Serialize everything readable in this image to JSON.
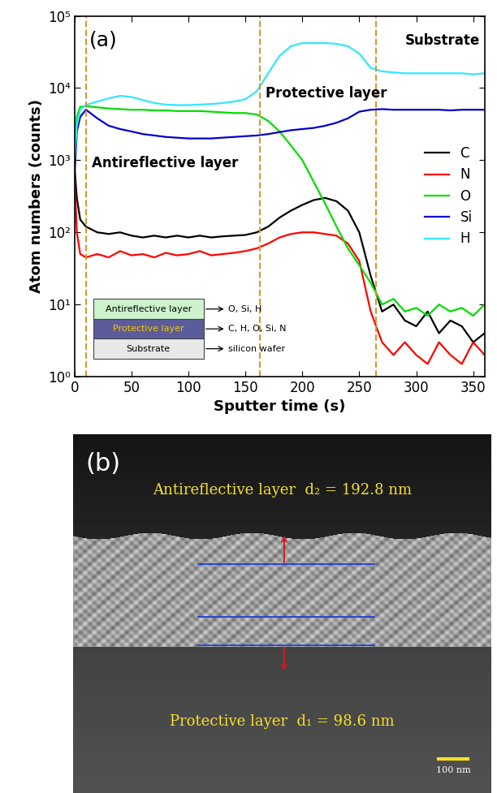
{
  "chart_data": {
    "type": "line",
    "panel_label": "(a)",
    "x_label": "Sputter time (s)",
    "y_label": "Atom numbers (counts)",
    "log": "y",
    "xlim": [
      0,
      360
    ],
    "xticks": [
      0,
      50,
      100,
      150,
      200,
      250,
      300,
      350
    ],
    "ylim": [
      1,
      100000
    ],
    "yticks": [
      {
        "value": 1,
        "label": "10⁰"
      },
      {
        "value": 10,
        "label": "10¹"
      },
      {
        "value": 100,
        "label": "10²"
      },
      {
        "value": 1000,
        "label": "10³"
      },
      {
        "value": 10000,
        "label": "10⁴"
      },
      {
        "value": 100000,
        "label": "10⁵"
      }
    ],
    "legend": "center right",
    "x": [
      0,
      2,
      5,
      10,
      20,
      30,
      40,
      50,
      60,
      70,
      80,
      90,
      100,
      110,
      120,
      130,
      140,
      150,
      160,
      170,
      180,
      190,
      200,
      210,
      220,
      230,
      240,
      250,
      260,
      270,
      280,
      290,
      300,
      310,
      320,
      330,
      340,
      350,
      360
    ],
    "series": [
      {
        "name": "C",
        "color": "#000000",
        "values": [
          800,
          300,
          150,
          120,
          100,
          95,
          100,
          90,
          85,
          90,
          85,
          90,
          85,
          90,
          85,
          88,
          90,
          92,
          100,
          120,
          160,
          200,
          240,
          280,
          300,
          270,
          200,
          100,
          25,
          8,
          10,
          6,
          5,
          8,
          4,
          6,
          5,
          3,
          4
        ]
      },
      {
        "name": "N",
        "color": "#ff0000",
        "values": [
          600,
          100,
          50,
          45,
          50,
          45,
          55,
          48,
          50,
          45,
          52,
          48,
          50,
          55,
          48,
          50,
          52,
          55,
          60,
          70,
          85,
          95,
          100,
          100,
          95,
          90,
          70,
          40,
          8,
          3,
          2,
          3,
          2,
          1.5,
          3,
          2,
          1.5,
          3,
          2
        ]
      },
      {
        "name": "O",
        "color": "#00dd00",
        "values": [
          800,
          4000,
          5500,
          5600,
          5400,
          5200,
          5100,
          5000,
          5000,
          4900,
          4900,
          4800,
          4800,
          4800,
          4700,
          4600,
          4500,
          4500,
          4300,
          3500,
          2500,
          1600,
          1000,
          500,
          250,
          120,
          60,
          35,
          20,
          10,
          12,
          8,
          9,
          7,
          10,
          8,
          9,
          7,
          10
        ]
      },
      {
        "name": "Si",
        "color": "#0000cc",
        "values": [
          600,
          2500,
          4000,
          5000,
          3800,
          3000,
          2700,
          2500,
          2300,
          2200,
          2100,
          2050,
          2000,
          2000,
          2000,
          2050,
          2100,
          2150,
          2200,
          2300,
          2450,
          2600,
          2700,
          2800,
          3000,
          3300,
          3800,
          4700,
          5000,
          5100,
          5000,
          5000,
          5000,
          5000,
          5000,
          4900,
          5000,
          5000,
          5000
        ]
      },
      {
        "name": "H",
        "color": "#33e6ff",
        "values": [
          1000,
          3000,
          5000,
          5800,
          6500,
          7200,
          7800,
          7500,
          6800,
          6200,
          5900,
          5800,
          5800,
          5900,
          6000,
          6200,
          6500,
          7000,
          9000,
          16000,
          28000,
          38000,
          42000,
          42000,
          42000,
          41000,
          38000,
          30000,
          19000,
          17000,
          16500,
          16000,
          16000,
          16000,
          16000,
          16000,
          16000,
          15500,
          16000
        ]
      }
    ],
    "boundaries": [
      10,
      163,
      265
    ],
    "annotations": [
      "Antireflective layer",
      "Protective layer",
      "Substrate"
    ],
    "inset": {
      "layers": [
        {
          "name": "Antireflective layer",
          "elements": "O, Si, H"
        },
        {
          "name": "Protective layer",
          "elements": "C, H, O, Si, N"
        },
        {
          "name": "Substrate",
          "elements": "silicon wafer"
        }
      ]
    }
  },
  "sem_image": {
    "panel_label": "(b)",
    "top_label": "Antireflective layer  d₂ = 192.8 nm",
    "bottom_label": "Protective layer  d₁ = 98.6 nm",
    "scale_bar": "100 nm"
  }
}
